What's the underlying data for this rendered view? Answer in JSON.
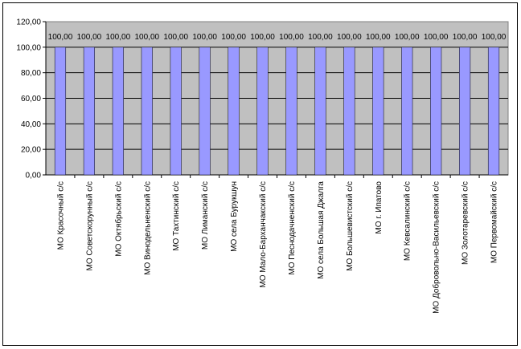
{
  "chart_data": {
    "type": "bar",
    "categories": [
      "МО Красочный с/с",
      "МО Советскорунный с/с",
      "МО Октябрьский с/с",
      "МО Винодельненский с/с",
      "МО Тахтинский с/с",
      "МО Лиманский с/с",
      "МО села Бурукшун",
      "МО Мало-Барханчакский с/с",
      "МО Песнодачненский  с/с",
      "МО села Большая Джалга",
      "МО Большевистский с/с",
      "МО г. Ипатово",
      "МО Кевсалинский с/с",
      "МО Добровольно-Васильевский с/с",
      "МО Золотаревский с/с",
      "МО Первомайский с/с"
    ],
    "values": [
      100,
      100,
      100,
      100,
      100,
      100,
      100,
      100,
      100,
      100,
      100,
      100,
      100,
      100,
      100,
      100
    ],
    "value_labels": [
      "100,00",
      "100,00",
      "100,00",
      "100,00",
      "100,00",
      "100,00",
      "100,00",
      "100,00",
      "100,00",
      "100,00",
      "100,00",
      "100,00",
      "100,00",
      "100,00",
      "100,00",
      "100,00"
    ],
    "yticks": [
      0,
      20,
      40,
      60,
      80,
      100,
      120
    ],
    "ytick_labels": [
      "0,00",
      "20,00",
      "40,00",
      "60,00",
      "80,00",
      "100,00",
      "120,00"
    ],
    "ylim": [
      0,
      120
    ],
    "title": "",
    "xlabel": "",
    "ylabel": "",
    "grid": true,
    "legend": "none",
    "colors": {
      "bar": "#9999ff",
      "bar_edge": "#000000",
      "plot_bg": "#c0c0c0",
      "grid": "#000000"
    }
  }
}
